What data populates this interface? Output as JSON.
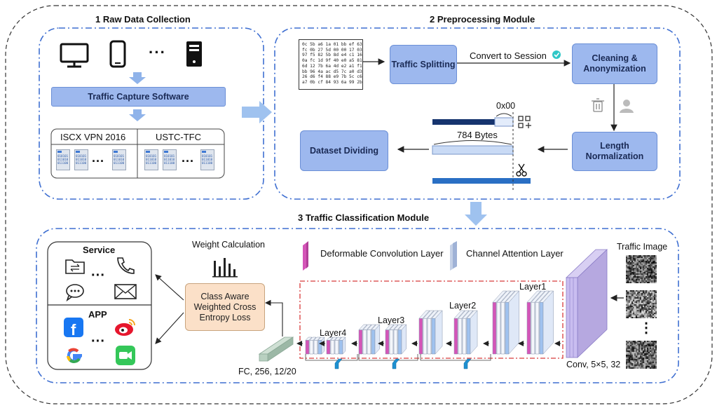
{
  "sections": {
    "raw": {
      "title": "1 Raw Data Collection"
    },
    "prep": {
      "title": "2 Preprocessing Module"
    },
    "cls": {
      "title": "3 Traffic Classification Module"
    }
  },
  "raw": {
    "device_ellipsis": "···",
    "capture_software": "Traffic Capture Software",
    "datasets": [
      "ISCX VPN 2016",
      "USTC-TFC"
    ],
    "file_ellipsis": "···",
    "file_text": [
      "010101",
      "011010",
      "011100"
    ]
  },
  "prep": {
    "hex_lines": [
      "0c 5b a6 1a 01 bb ef 63",
      "fc 0b 27 5d 00 00 17 03",
      "97 f5 82 5b 8d e4 c1 16",
      "0a fc 1d 9f 40 e0 a5 81",
      "6d 12 7b 6a 4d e2 a1 f1",
      "bb 96 4a ac d5 7c a0 d3",
      "26 d6 f4 88 e9 7b 5c c6",
      "a7 0b cf 84 93 6a 99 2b"
    ],
    "traffic_splitting": "Traffic Splitting",
    "convert_label": "Convert to Session",
    "cleaning": "Cleaning & Anonymization",
    "length_norm": "Length Normalization",
    "dataset_dividing": "Dataset Dividing",
    "pad_label": "0x00",
    "bytes_label": "784 Bytes"
  },
  "cls": {
    "service_title": "Service",
    "app_title": "APP",
    "ellipsis": "···",
    "weight_calc": "Weight Calculation",
    "loss": "Class Aware Weighted Cross Entropy Loss",
    "legend_deform": "Deformable Convolution Layer",
    "legend_channel": "Channel Attention Layer",
    "traffic_image": "Traffic Image",
    "layers": [
      "Layer1",
      "Layer2",
      "Layer3",
      "Layer4"
    ],
    "conv_label": "Conv, 5×5, 32",
    "fc_label": "FC, 256, 12/20",
    "image_ellipsis": "⋮"
  },
  "colors": {
    "dashed_blue": "#3f6fd1",
    "box_blue": "#9db8ee",
    "loss_fill": "#fbe0c8",
    "deform_pink": "#d455b8",
    "channel_blue": "#9fc2ef",
    "conv_purple": "#c0b4e6",
    "red_dash": "#d83a3a"
  }
}
